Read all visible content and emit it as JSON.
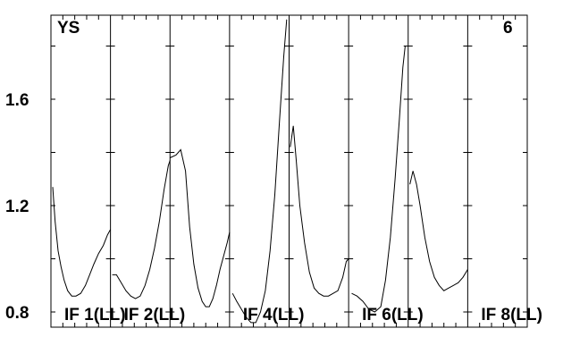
{
  "chart_data": {
    "type": "line",
    "title": "YS",
    "corner_label": "6",
    "ylim": [
      0.8,
      1.95
    ],
    "yticks_labeled": [
      {
        "value": 0.8,
        "label": "0.8"
      },
      {
        "value": 1.2,
        "label": "1.2"
      },
      {
        "value": 1.6,
        "label": "1.6"
      }
    ],
    "yticks_minor": [
      1.0,
      1.4,
      1.8
    ],
    "panels": [
      {
        "label": "IF 1(LL)",
        "points": [
          [
            0.03,
            1.27
          ],
          [
            0.07,
            1.14
          ],
          [
            0.12,
            1.03
          ],
          [
            0.17,
            0.97
          ],
          [
            0.22,
            0.92
          ],
          [
            0.28,
            0.88
          ],
          [
            0.35,
            0.86
          ],
          [
            0.42,
            0.86
          ],
          [
            0.5,
            0.87
          ],
          [
            0.58,
            0.9
          ],
          [
            0.65,
            0.94
          ],
          [
            0.72,
            0.98
          ],
          [
            0.8,
            1.02
          ],
          [
            0.88,
            1.05
          ],
          [
            0.95,
            1.09
          ],
          [
            1.0,
            1.11
          ]
        ]
      },
      {
        "label": "IF 2(LL)",
        "points": [
          [
            0.03,
            0.94
          ],
          [
            0.1,
            0.94
          ],
          [
            0.18,
            0.91
          ],
          [
            0.26,
            0.88
          ],
          [
            0.34,
            0.86
          ],
          [
            0.42,
            0.85
          ],
          [
            0.5,
            0.86
          ],
          [
            0.58,
            0.9
          ],
          [
            0.66,
            0.96
          ],
          [
            0.74,
            1.04
          ],
          [
            0.82,
            1.14
          ],
          [
            0.9,
            1.26
          ],
          [
            0.97,
            1.35
          ],
          [
            1.0,
            1.37
          ]
        ]
      },
      {
        "label": "",
        "points": [
          [
            0.0,
            1.38
          ],
          [
            0.1,
            1.39
          ],
          [
            0.18,
            1.41
          ],
          [
            0.26,
            1.33
          ],
          [
            0.33,
            1.12
          ],
          [
            0.4,
            0.98
          ],
          [
            0.47,
            0.89
          ],
          [
            0.54,
            0.84
          ],
          [
            0.6,
            0.82
          ],
          [
            0.66,
            0.82
          ],
          [
            0.72,
            0.85
          ],
          [
            0.78,
            0.9
          ],
          [
            0.84,
            0.96
          ],
          [
            0.9,
            1.01
          ],
          [
            0.96,
            1.06
          ],
          [
            1.0,
            1.1
          ]
        ]
      },
      {
        "label": "IF 4(LL)",
        "points": [
          [
            0.05,
            0.87
          ],
          [
            0.12,
            0.84
          ],
          [
            0.2,
            0.81
          ],
          [
            0.28,
            0.78
          ],
          [
            0.36,
            0.76
          ],
          [
            0.44,
            0.76
          ],
          [
            0.52,
            0.8
          ],
          [
            0.6,
            0.88
          ],
          [
            0.68,
            1.03
          ],
          [
            0.76,
            1.24
          ],
          [
            0.84,
            1.52
          ],
          [
            0.91,
            1.76
          ],
          [
            0.96,
            1.9
          ]
        ]
      },
      {
        "label": "",
        "points": [
          [
            0.02,
            1.42
          ],
          [
            0.07,
            1.5
          ],
          [
            0.12,
            1.37
          ],
          [
            0.18,
            1.2
          ],
          [
            0.26,
            1.06
          ],
          [
            0.34,
            0.95
          ],
          [
            0.42,
            0.89
          ],
          [
            0.5,
            0.87
          ],
          [
            0.58,
            0.86
          ],
          [
            0.66,
            0.86
          ],
          [
            0.74,
            0.87
          ],
          [
            0.82,
            0.88
          ],
          [
            0.9,
            0.93
          ],
          [
            0.96,
            0.99
          ],
          [
            1.0,
            1.0
          ]
        ]
      },
      {
        "label": "IF 6(LL)",
        "points": [
          [
            0.05,
            0.87
          ],
          [
            0.14,
            0.86
          ],
          [
            0.24,
            0.84
          ],
          [
            0.34,
            0.81
          ],
          [
            0.44,
            0.8
          ],
          [
            0.54,
            0.82
          ],
          [
            0.62,
            0.92
          ],
          [
            0.7,
            1.08
          ],
          [
            0.78,
            1.3
          ],
          [
            0.85,
            1.52
          ],
          [
            0.91,
            1.72
          ],
          [
            0.95,
            1.8
          ]
        ]
      },
      {
        "label": "",
        "points": [
          [
            0.03,
            1.28
          ],
          [
            0.08,
            1.33
          ],
          [
            0.14,
            1.28
          ],
          [
            0.2,
            1.2
          ],
          [
            0.28,
            1.08
          ],
          [
            0.36,
            0.99
          ],
          [
            0.44,
            0.93
          ],
          [
            0.52,
            0.9
          ],
          [
            0.6,
            0.88
          ],
          [
            0.68,
            0.89
          ],
          [
            0.76,
            0.9
          ],
          [
            0.84,
            0.91
          ],
          [
            0.92,
            0.93
          ],
          [
            1.0,
            0.96
          ]
        ]
      },
      {
        "label": "IF 8(LL)",
        "points": []
      }
    ]
  }
}
